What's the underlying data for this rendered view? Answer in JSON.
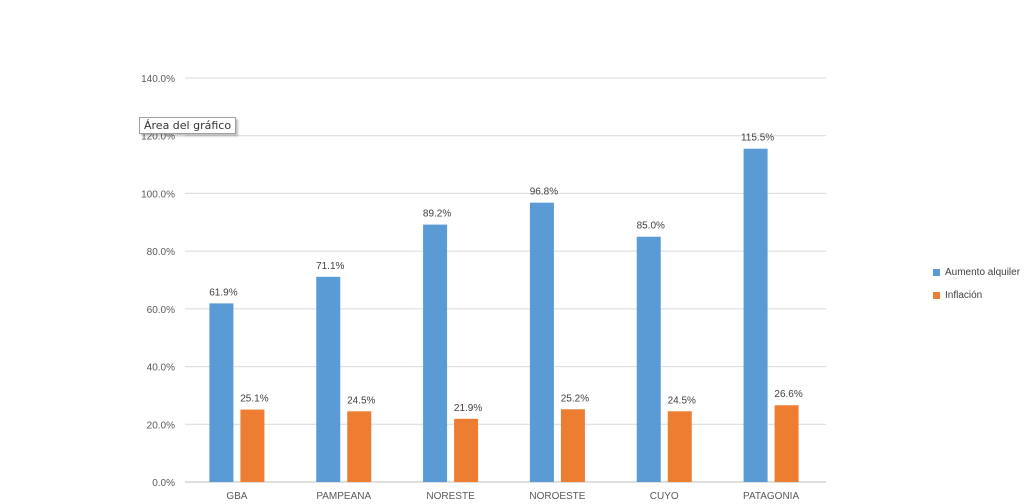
{
  "chart_data": {
    "type": "bar",
    "title": "",
    "xlabel": "",
    "ylabel": "",
    "categories": [
      "GBA",
      "PAMPEANA",
      "NORESTE",
      "NOROESTE",
      "CUYO",
      "PATAGONIA"
    ],
    "series": [
      {
        "name": "Aumento alquiler",
        "color": "#5B9BD5",
        "values": [
          61.9,
          71.1,
          89.2,
          96.8,
          85.0,
          115.5
        ],
        "labels": [
          "61.9%",
          "71.1%",
          "89.2%",
          "96.8%",
          "85.0%",
          "115.5%"
        ]
      },
      {
        "name": "Inflación",
        "color": "#ED7D31",
        "values": [
          25.1,
          24.5,
          21.9,
          25.2,
          24.5,
          26.6
        ],
        "labels": [
          "25.1%",
          "24.5%",
          "21.9%",
          "25.2%",
          "24.5%",
          "26.6%"
        ]
      }
    ],
    "ylim": [
      0,
      140
    ],
    "y_ticks": [
      "0.0%",
      "20.0%",
      "40.0%",
      "60.0%",
      "80.0%",
      "100.0%",
      "120.0%",
      "140.0%"
    ],
    "grid": true,
    "legend_position": "right"
  },
  "tooltip": {
    "text": "Área del gráfico"
  }
}
